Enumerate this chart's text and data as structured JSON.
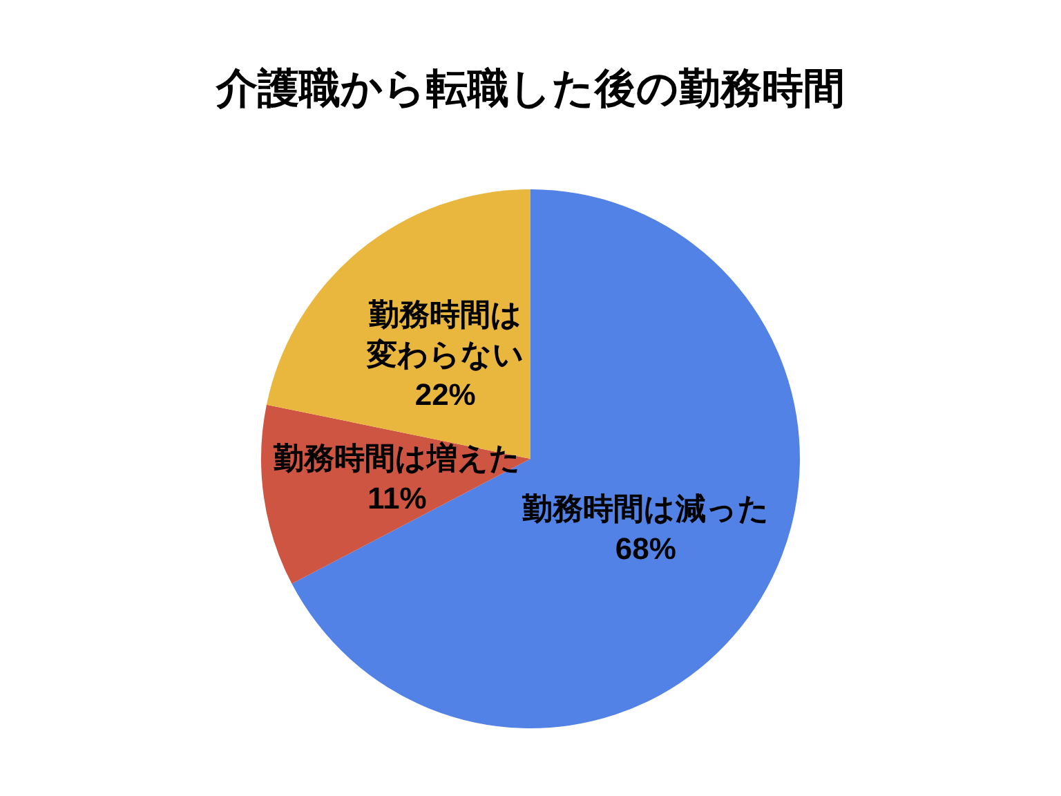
{
  "chart_data": {
    "type": "pie",
    "title": "介護職から転職した後の勤務時間",
    "categories": [
      "勤務時間は減った",
      "勤務時間は増えた",
      "勤務時間は変わらない"
    ],
    "values": [
      68,
      11,
      22
    ],
    "colors": [
      "#5282e6",
      "#cd5541",
      "#e9b63e"
    ],
    "value_labels": [
      "68%",
      "11%",
      "22%"
    ]
  }
}
